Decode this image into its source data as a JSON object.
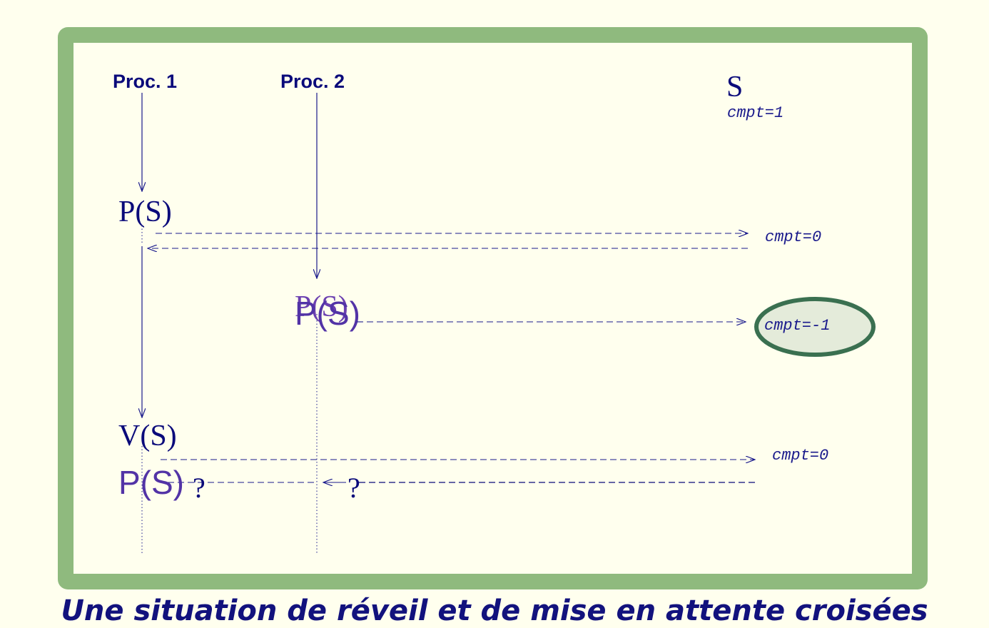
{
  "processes": {
    "p1_label": "Proc. 1",
    "p2_label": "Proc. 2"
  },
  "semaphore": {
    "name": "S",
    "initial_counter": "cmpt=1"
  },
  "operations": {
    "p1_first": "P(S)",
    "p2_first_back": "P(S)",
    "p2_first_front": "P(S)",
    "p1_release": "V(S)",
    "p1_retry": "P(S)"
  },
  "counters": {
    "after_p1": "cmpt=0",
    "after_p2": "cmpt=-1",
    "after_release": "cmpt=0"
  },
  "questions": {
    "q1": "?",
    "q2": "?"
  },
  "caption": "Une situation de réveil et de mise en attente croisées"
}
